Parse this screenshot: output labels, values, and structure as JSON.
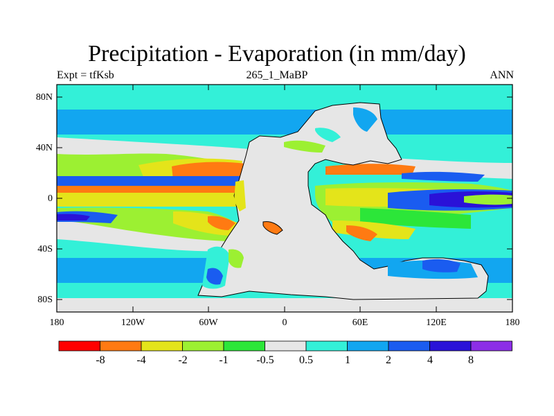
{
  "title": "Precipitation - Evaporation (in mm/day)",
  "left_label": "Expt = tfKsb",
  "center_label": "265_1_MaBP",
  "right_label": "ANN",
  "y_ticks": [
    "80N",
    "40N",
    "0",
    "40S",
    "80S"
  ],
  "x_ticks": [
    "180",
    "120W",
    "60W",
    "0",
    "60E",
    "120E",
    "180"
  ],
  "colorbar": {
    "colors": [
      "#ff0000",
      "#ff7a12",
      "#e4e41a",
      "#9cf032",
      "#2ce639",
      "#e6e6e6",
      "#33f0d8",
      "#12a6f0",
      "#1a5cf0",
      "#2a12d8",
      "#8c2ee6"
    ],
    "labels": [
      "-8",
      "-4",
      "-2",
      "-1",
      "-0.5",
      "0.5",
      "1",
      "2",
      "4",
      "8"
    ]
  },
  "palette": {
    "ocean_base": "#33f0d8",
    "land": "#e6e6e6",
    "coast": "#000000"
  }
}
